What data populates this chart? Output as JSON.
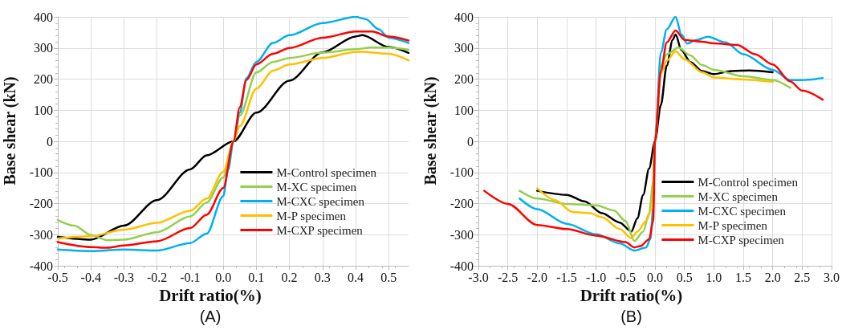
{
  "chart_data": [
    {
      "type": "line",
      "title": "(A)",
      "xlabel": "Drift ratio(%)",
      "ylabel": "Base shear (kN)",
      "xlim": [
        -0.5,
        0.56
      ],
      "ylim": [
        -400,
        400
      ],
      "xticks": [
        -0.5,
        -0.4,
        -0.3,
        -0.2,
        -0.1,
        {
          "value": 0,
          "label": "0.0"
        },
        0.1,
        0.2,
        0.3,
        0.4,
        0.5
      ],
      "yticks": [
        -400,
        -300,
        -200,
        -100,
        0,
        100,
        200,
        300,
        400
      ],
      "grid": true,
      "legend": "bottom right",
      "marker": "none",
      "line_style": "solid",
      "series": [
        {
          "name": "M-Control specimen",
          "color": "#000000",
          "x": [
            -0.5,
            -0.4,
            -0.3,
            -0.2,
            -0.1,
            -0.05,
            0.031,
            0.1,
            0.2,
            0.3,
            0.4,
            0.42,
            0.5,
            0.56
          ],
          "values": [
            -307,
            -316,
            -271,
            -189,
            -90,
            -45,
            0,
            92,
            195,
            286,
            337,
            341,
            303,
            284
          ]
        },
        {
          "name": "M-XC specimen",
          "color": "#92d050",
          "x": [
            -0.5,
            -0.45,
            -0.4,
            -0.35,
            -0.3,
            -0.2,
            -0.1,
            -0.05,
            0,
            0.031,
            0.05,
            0.1,
            0.15,
            0.2,
            0.3,
            0.4,
            0.45,
            0.5,
            0.56
          ],
          "values": [
            -253,
            -271,
            -301,
            -318,
            -316,
            -292,
            -241,
            -197,
            -116,
            0,
            83,
            221,
            255,
            268,
            285,
            296,
            302,
            301,
            294
          ]
        },
        {
          "name": "M-CXC specimen",
          "color": "#00b0f0",
          "x": [
            -0.5,
            -0.4,
            -0.3,
            -0.2,
            -0.1,
            -0.05,
            0,
            0.015,
            0.031,
            0.05,
            0.07,
            0.1,
            0.15,
            0.2,
            0.3,
            0.4,
            0.43,
            0.47,
            0.5,
            0.56
          ],
          "values": [
            -348,
            -353,
            -348,
            -351,
            -327,
            -297,
            -176,
            -90,
            0,
            92,
            203,
            255,
            316,
            341,
            380,
            400,
            393,
            360,
            333,
            316
          ]
        },
        {
          "name": "M-P specimen",
          "color": "#ffc000",
          "x": [
            -0.5,
            -0.4,
            -0.3,
            -0.2,
            -0.1,
            -0.05,
            0,
            0.031,
            0.05,
            0.1,
            0.15,
            0.2,
            0.3,
            0.4,
            0.42,
            0.5,
            0.56
          ],
          "values": [
            -312,
            -305,
            -284,
            -262,
            -223,
            -184,
            -98,
            0,
            49,
            169,
            227,
            247,
            268,
            287,
            288,
            281,
            260
          ]
        },
        {
          "name": "M-CXP specimen",
          "color": "#ff0000",
          "x": [
            -0.5,
            -0.4,
            -0.35,
            -0.3,
            -0.2,
            -0.1,
            -0.05,
            0,
            0.031,
            0.05,
            0.07,
            0.1,
            0.15,
            0.2,
            0.3,
            0.4,
            0.45,
            0.5,
            0.56
          ],
          "values": [
            -324,
            -340,
            -342,
            -335,
            -321,
            -279,
            -236,
            -150,
            0,
            110,
            197,
            247,
            281,
            300,
            333,
            353,
            353,
            337,
            324
          ]
        }
      ]
    },
    {
      "type": "line",
      "title": "(B)",
      "xlabel": "Drift ratio(%)",
      "ylabel": "Base shear (kN)",
      "xlim": [
        -3.0,
        3.0
      ],
      "ylim": [
        -400,
        400
      ],
      "xticks": [
        {
          "value": -3,
          "label": "-3.0"
        },
        -2.5,
        {
          "value": -2,
          "label": "-2.0"
        },
        -1.5,
        {
          "value": -1,
          "label": "-1.0"
        },
        -0.5,
        {
          "value": 0,
          "label": "0.0"
        },
        0.5,
        {
          "value": 1,
          "label": "1.0"
        },
        1.5,
        {
          "value": 2,
          "label": "2.0"
        },
        2.5,
        {
          "value": 3,
          "label": "3.0"
        }
      ],
      "yticks": [
        -400,
        -300,
        -200,
        -100,
        0,
        100,
        200,
        300,
        400
      ],
      "grid": true,
      "legend": "bottom right",
      "marker": "none",
      "line_style": "solid",
      "series": [
        {
          "name": "M-Control specimen",
          "color": "#000000",
          "x": [
            -2.0,
            -1.5,
            -1.2,
            -0.9,
            -0.6,
            -0.4,
            -0.3,
            -0.2,
            -0.1,
            0,
            0.1,
            0.2,
            0.3,
            0.35,
            0.45,
            0.6,
            0.8,
            1.0,
            1.3,
            1.6,
            2.0
          ],
          "values": [
            -159,
            -172,
            -193,
            -231,
            -261,
            -290,
            -248,
            -172,
            -87,
            0,
            117,
            243,
            326,
            343,
            293,
            255,
            226,
            216,
            226,
            228,
            222
          ]
        },
        {
          "name": "M-XC specimen",
          "color": "#92d050",
          "x": [
            -2.3,
            -2.0,
            -1.5,
            -1.0,
            -0.7,
            -0.5,
            -0.35,
            -0.2,
            -0.1,
            -0.03,
            0,
            0.1,
            0.2,
            0.4,
            0.6,
            0.8,
            1.0,
            1.5,
            2.0,
            2.3
          ],
          "values": [
            -159,
            -184,
            -201,
            -206,
            -222,
            -256,
            -320,
            -290,
            -231,
            -130,
            0,
            243,
            280,
            301,
            276,
            245,
            230,
            209,
            197,
            172
          ]
        },
        {
          "name": "M-CXC specimen",
          "color": "#00b0f0",
          "x": [
            -2.3,
            -2.0,
            -1.5,
            -1.0,
            -0.6,
            -0.35,
            -0.15,
            -0.08,
            -0.03,
            0,
            0.1,
            0.2,
            0.35,
            0.45,
            0.55,
            0.7,
            0.9,
            1.2,
            1.5,
            2.0,
            2.3,
            2.5,
            2.85
          ],
          "values": [
            -184,
            -218,
            -265,
            -299,
            -328,
            -351,
            -341,
            -315,
            -214,
            0,
            285,
            360,
            400,
            343,
            314,
            326,
            336,
            318,
            280,
            230,
            197,
            197,
            203
          ]
        },
        {
          "name": "M-P specimen",
          "color": "#ffc000",
          "x": [
            -2.0,
            -1.7,
            -1.4,
            -1.1,
            -0.9,
            -0.6,
            -0.4,
            -0.3,
            -0.15,
            -0.05,
            0,
            0.1,
            0.2,
            0.35,
            0.5,
            0.8,
            1.0,
            1.5,
            2.0
          ],
          "values": [
            -151,
            -189,
            -227,
            -231,
            -244,
            -282,
            -311,
            -290,
            -256,
            -214,
            0,
            218,
            259,
            289,
            264,
            222,
            205,
            199,
            191
          ]
        },
        {
          "name": "M-CXP specimen",
          "color": "#ff0000",
          "x": [
            -2.9,
            -2.5,
            -2.0,
            -1.5,
            -1.0,
            -0.5,
            -0.35,
            -0.25,
            -0.1,
            -0.03,
            0,
            0.1,
            0.2,
            0.35,
            0.5,
            0.8,
            1.0,
            1.4,
            1.7,
            2.0,
            2.3,
            2.5,
            2.85
          ],
          "values": [
            -159,
            -201,
            -269,
            -282,
            -303,
            -324,
            -341,
            -337,
            -315,
            -256,
            0,
            226,
            318,
            356,
            326,
            320,
            315,
            310,
            280,
            247,
            192,
            163,
            134
          ]
        }
      ]
    }
  ]
}
